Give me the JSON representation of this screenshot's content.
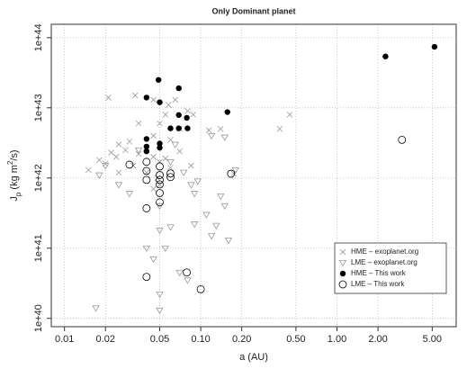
{
  "chart_data": {
    "type": "scatter",
    "title": "Only Dominant planet",
    "xlabel": "a (AU)",
    "ylabel": [
      "J",
      "p",
      " (kg m",
      "2",
      "/s)"
    ],
    "xscale": "log",
    "yscale": "log",
    "xlim": [
      0.008,
      7.5
    ],
    "ylim": [
      7.6e+39,
      1.55e+44
    ],
    "xticks": [
      0.01,
      0.02,
      0.05,
      {
        "value": 0.1,
        "label": "0.10"
      },
      {
        "value": 0.2,
        "label": "0.20"
      },
      {
        "value": 0.5,
        "label": "0.50"
      },
      {
        "value": 1,
        "label": "1.00"
      },
      {
        "value": 2,
        "label": "2.00"
      },
      {
        "value": 5,
        "label": "5.00"
      }
    ],
    "yticks": [
      {
        "value": 1e+40,
        "label": "1e+40"
      },
      {
        "value": 1e+41,
        "label": "1e+41"
      },
      {
        "value": 1e+42,
        "label": "1e+42"
      },
      {
        "value": 1e+43,
        "label": "1e+43"
      },
      {
        "value": 1e+44,
        "label": "1e+44"
      }
    ],
    "grid": true,
    "legend": "lower right",
    "series": [
      {
        "name": "HME – exoplanet.org",
        "color": "#999999",
        "marker": "x",
        "x": [
          0.021,
          0.033,
          0.045,
          0.058,
          0.055,
          0.065,
          0.08,
          0.088,
          0.115,
          0.38,
          0.45,
          0.035,
          0.045,
          0.05,
          0.06,
          0.07,
          0.025,
          0.028,
          0.03,
          0.022,
          0.024,
          0.02,
          0.035,
          0.04,
          0.045,
          0.05,
          0.055,
          0.06,
          0.015,
          0.018,
          0.032,
          0.04,
          0.048,
          0.05,
          0.045,
          0.025,
          0.07,
          0.085,
          0.175,
          0.14
        ],
        "values": [
          1.4e+43,
          1.5e+43,
          1.3e+43,
          1.1e+43,
          8e+42,
          1.3e+43,
          9e+42,
          8e+42,
          4.8e+42,
          5e+42,
          8e+42,
          6e+42,
          4e+42,
          6e+42,
          3.5e+42,
          5e+42,
          3e+42,
          2.5e+42,
          3.3e+42,
          2.3e+42,
          2e+42,
          1.6e+42,
          2.2e+42,
          2.7e+42,
          2e+42,
          1.7e+42,
          1.9e+42,
          1.4e+42,
          1.3e+42,
          1.8e+42,
          1.5e+42,
          1.2e+42,
          1e+42,
          8e+41,
          7e+41,
          1.2e+42,
          2.4e+42,
          1.5e+42,
          1.15e+42,
          5e+42
        ]
      },
      {
        "name": "LME – exoplanet.org",
        "color": "#999999",
        "marker": "triangle-down",
        "x": [
          0.017,
          0.05,
          0.04,
          0.03,
          0.025,
          0.018,
          0.05,
          0.055,
          0.06,
          0.09,
          0.09,
          0.11,
          0.13,
          0.14,
          0.15,
          0.16,
          0.12,
          0.085,
          0.095,
          0.075,
          0.065,
          0.18,
          0.12,
          0.15,
          0.05,
          0.07,
          0.08,
          0.045,
          0.035,
          0.02,
          0.06,
          0.05
        ],
        "values": [
          1.4e+40,
          1.3e+40,
          1e+41,
          6e+41,
          8e+41,
          1.1e+42,
          1.8e+41,
          1e+41,
          2e+41,
          2.2e+41,
          6e+41,
          3e+41,
          2.1e+41,
          5.5e+41,
          4e+41,
          1.3e+41,
          1.5e+41,
          8e+41,
          9e+41,
          1.2e+42,
          3e+42,
          1.3e+42,
          4e+42,
          3.8e+42,
          2.2e+40,
          4.5e+40,
          3.5e+40,
          7e+40,
          2.5e+42,
          1.5e+42,
          1.7e+42,
          4e+41
        ]
      },
      {
        "name": "HME – This work",
        "color": "#000000",
        "marker": "circle-filled",
        "x": [
          5.2,
          2.27,
          0.049,
          0.04,
          0.05,
          0.069,
          0.157,
          0.069,
          0.079,
          0.06,
          0.069,
          0.08,
          0.04,
          0.04,
          0.04,
          0.05,
          0.05
        ],
        "values": [
          7.4e+43,
          5.4e+43,
          2.5e+43,
          1.4e+43,
          1.2e+43,
          1.9e+43,
          8.7e+42,
          7.9e+42,
          7.2e+42,
          5.1e+42,
          5.1e+42,
          5.1e+42,
          3.6e+42,
          2.8e+42,
          2.4e+42,
          3.1e+42,
          2.7e+42
        ]
      },
      {
        "name": "LME – This work",
        "color": "#000000",
        "marker": "circle-open",
        "x": [
          3.0,
          0.03,
          0.167,
          0.04,
          0.04,
          0.04,
          0.05,
          0.05,
          0.05,
          0.05,
          0.06,
          0.06,
          0.05,
          0.05,
          0.04,
          0.04,
          0.079,
          0.1
        ],
        "values": [
          3.5e+42,
          1.55e+42,
          1.15e+42,
          1.7e+42,
          1.26e+42,
          9.4e+41,
          1.46e+42,
          1.1e+42,
          9.4e+41,
          8.1e+41,
          1.16e+42,
          1.03e+42,
          6.1e+41,
          4.5e+41,
          3.7e+41,
          3.9e+40,
          4.5e+40,
          2.6e+40
        ]
      }
    ]
  }
}
